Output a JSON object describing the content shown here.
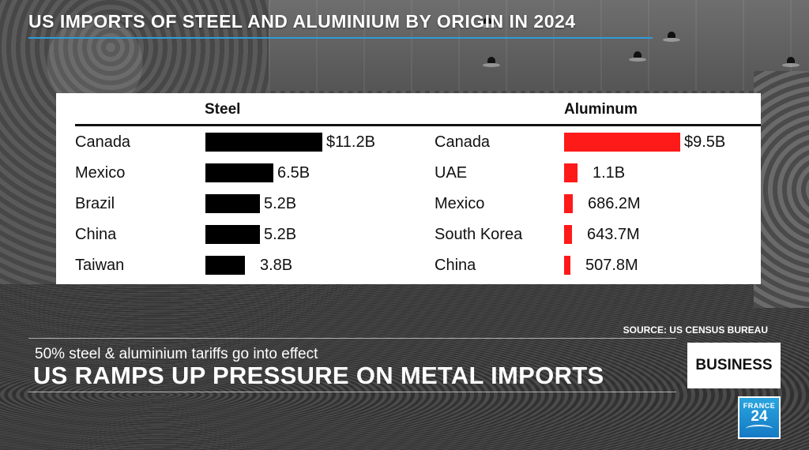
{
  "header": {
    "title": "US IMPORTS OF STEEL AND ALUMINIUM BY ORIGIN IN 2024"
  },
  "chart_data": [
    {
      "type": "bar",
      "orientation": "horizontal",
      "title": "Steel",
      "unit": "USD",
      "categories": [
        "Canada",
        "Mexico",
        "Brazil",
        "China",
        "Taiwan"
      ],
      "values": [
        11.2,
        6.5,
        5.2,
        5.2,
        3.8
      ],
      "value_labels": [
        "$11.2B",
        "6.5B",
        "5.2B",
        "5.2B",
        "3.8B"
      ],
      "xlim": [
        0,
        11.2
      ],
      "color": "#000000"
    },
    {
      "type": "bar",
      "orientation": "horizontal",
      "title": "Aluminum",
      "unit": "USD",
      "categories": [
        "Canada",
        "UAE",
        "Mexico",
        "South Korea",
        "China"
      ],
      "values": [
        9.5,
        1.1,
        0.6862,
        0.6437,
        0.5078
      ],
      "value_labels": [
        "$9.5B",
        "1.1B",
        "686.2M",
        "643.7M",
        "507.8M"
      ],
      "xlim": [
        0,
        9.5
      ],
      "color": "#ff1a1a"
    }
  ],
  "source": "SOURCE: US CENSUS BUREAU",
  "strap": {
    "subtitle": "50% steel & aluminium tariffs go into effect",
    "headline": "US RAMPS UP PRESSURE ON METAL IMPORTS"
  },
  "badge": "BUSINESS",
  "logo": {
    "top": "FRANCE",
    "number": "24"
  },
  "colors": {
    "steel_bar": "#000000",
    "aluminum_bar": "#ff1a1a",
    "title_rule": "#2f9bdc",
    "logo_blue": "#1e90d6"
  }
}
